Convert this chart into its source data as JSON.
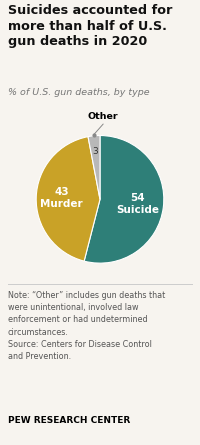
{
  "title": "Suicides accounted for\nmore than half of U.S.\ngun deaths in 2020",
  "subtitle": "% of U.S. gun deaths, by type",
  "slices": [
    54,
    43,
    3
  ],
  "labels": [
    "Suicide",
    "Murder",
    "Other"
  ],
  "colors": [
    "#2e7f78",
    "#c9a227",
    "#b8b8b8"
  ],
  "note_line1": "Note: “Other” includes gun deaths that",
  "note_line2": "were unintentional, involved law",
  "note_line3": "enforcement or had undetermined",
  "note_line4": "circumstances.",
  "note_line5": "Source: Centers for Disease Control",
  "note_line6": "and Prevention.",
  "footer": "PEW RESEARCH CENTER",
  "background_color": "#f7f4ef",
  "title_color": "#111111",
  "subtitle_color": "#777777",
  "note_color": "#555555",
  "label_color_white": "#ffffff",
  "label_color_dark": "#333333"
}
